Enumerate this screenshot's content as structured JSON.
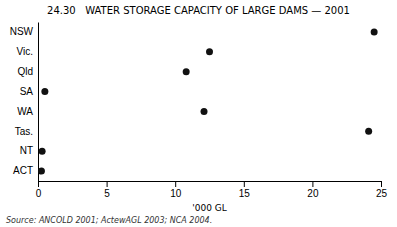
{
  "chart_data": {
    "type": "dot",
    "orientation": "horizontal",
    "title": "24.30   WATER STORAGE CAPACITY OF LARGE DAMS — 2001",
    "categories": [
      "NSW",
      "Vic.",
      "Qld",
      "SA",
      "WA",
      "Tas.",
      "NT",
      "ACT"
    ],
    "values": [
      24.5,
      12.5,
      10.8,
      0.5,
      12.1,
      24.1,
      0.3,
      0.25
    ],
    "xlabel": "'000 GL",
    "source": "Source: ANCOLD 2001; ActewAGL 2003; NCA 2004.",
    "xlim": [
      0,
      25
    ],
    "xticks": [
      0,
      5,
      10,
      15,
      20,
      25
    ],
    "color": "#111111",
    "grid": false
  }
}
